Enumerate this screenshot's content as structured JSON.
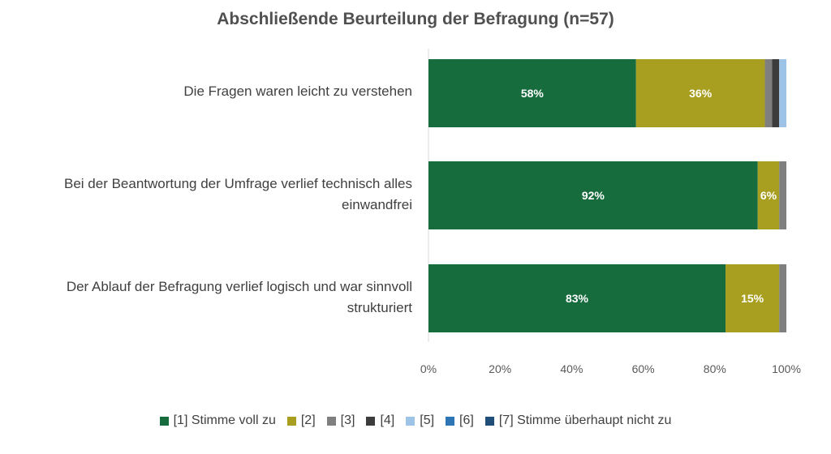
{
  "chart_data": {
    "type": "bar",
    "orientation": "horizontal",
    "stacked": true,
    "title": "Abschließende Beurteilung der Befragung (n=57)",
    "categories": [
      "Die Fragen waren leicht zu verstehen",
      "Bei der Beantwortung der Umfrage verlief technisch alles einwandfrei",
      "Der Ablauf der Befragung verlief logisch und war sinnvoll strukturiert"
    ],
    "series": [
      {
        "name": "[1] Stimme voll zu",
        "color": "#176c3e",
        "values": [
          58,
          92,
          83
        ]
      },
      {
        "name": "[2]",
        "color": "#a89e1f",
        "values": [
          36,
          6,
          15
        ]
      },
      {
        "name": "[3]",
        "color": "#7f7f7f",
        "values": [
          2,
          2,
          2
        ]
      },
      {
        "name": "[4]",
        "color": "#3c3c3c",
        "values": [
          2,
          0,
          0
        ]
      },
      {
        "name": "[5]",
        "color": "#9dc3e6",
        "values": [
          2,
          0,
          0
        ]
      },
      {
        "name": "[6]",
        "color": "#2e75b6",
        "values": [
          0,
          0,
          0
        ]
      },
      {
        "name": "[7] Stimme überhaupt nicht zu",
        "color": "#1f4e79",
        "values": [
          0,
          0,
          0
        ]
      }
    ],
    "data_labels": [
      {
        "category": 0,
        "series": 0,
        "text": "58%"
      },
      {
        "category": 0,
        "series": 1,
        "text": "36%"
      },
      {
        "category": 1,
        "series": 0,
        "text": "92%"
      },
      {
        "category": 1,
        "series": 1,
        "text": "6%"
      },
      {
        "category": 2,
        "series": 0,
        "text": "83%"
      },
      {
        "category": 2,
        "series": 1,
        "text": "15%"
      }
    ],
    "xlim": [
      0,
      100
    ],
    "x_ticks": [
      "0%",
      "20%",
      "40%",
      "60%",
      "80%",
      "100%"
    ],
    "legend_position": "bottom",
    "grid": false
  }
}
